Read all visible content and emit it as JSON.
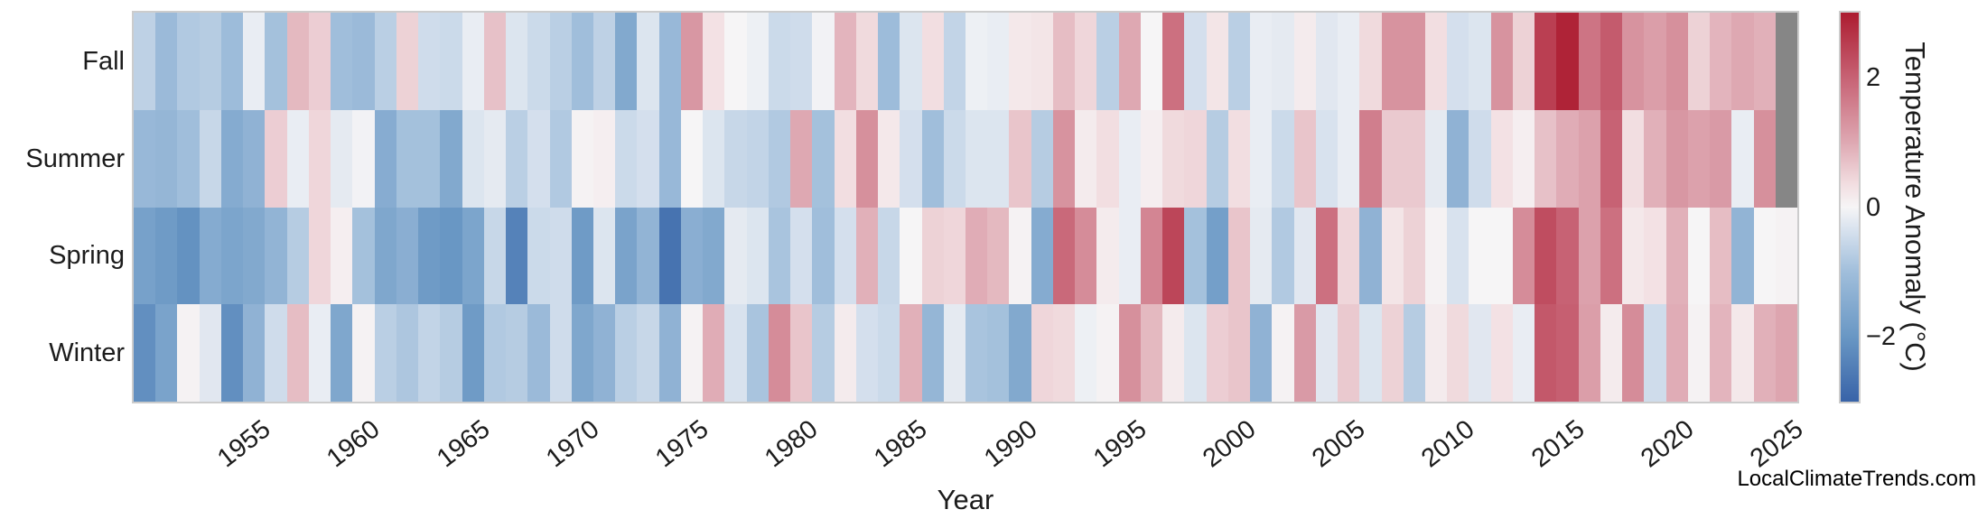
{
  "watermark": "LocalClimateTrends.com",
  "chart_data": {
    "type": "heatmap",
    "xlabel": "Year",
    "x": [
      1950,
      1951,
      1952,
      1953,
      1954,
      1955,
      1956,
      1957,
      1958,
      1959,
      1960,
      1961,
      1962,
      1963,
      1964,
      1965,
      1966,
      1967,
      1968,
      1969,
      1970,
      1971,
      1972,
      1973,
      1974,
      1975,
      1976,
      1977,
      1978,
      1979,
      1980,
      1981,
      1982,
      1983,
      1984,
      1985,
      1986,
      1987,
      1988,
      1989,
      1990,
      1991,
      1992,
      1993,
      1994,
      1995,
      1996,
      1997,
      1998,
      1999,
      2000,
      2001,
      2002,
      2003,
      2004,
      2005,
      2006,
      2007,
      2008,
      2009,
      2010,
      2011,
      2012,
      2013,
      2014,
      2015,
      2016,
      2017,
      2018,
      2019,
      2020,
      2021,
      2022,
      2023,
      2024,
      2025
    ],
    "x_tick_labels": [
      "1955",
      "1960",
      "1965",
      "1970",
      "1975",
      "1980",
      "1985",
      "1990",
      "1995",
      "2000",
      "2005",
      "2010",
      "2015",
      "2020",
      "2025"
    ],
    "categories": [
      "Fall",
      "Summer",
      "Spring",
      "Winter"
    ],
    "series": [
      {
        "name": "Fall",
        "values": [
          -0.65,
          -1.1,
          -0.8,
          -0.75,
          -1.05,
          -0.15,
          -0.95,
          0.8,
          0.55,
          -1.0,
          -1.1,
          -0.7,
          0.5,
          -0.45,
          -0.5,
          -0.15,
          0.7,
          -0.3,
          -0.5,
          -0.7,
          -1.0,
          -0.65,
          -1.55,
          -0.3,
          -1.15,
          1.25,
          0.3,
          0.0,
          -0.1,
          -0.5,
          -0.45,
          -0.05,
          0.85,
          0.4,
          -1.05,
          -0.3,
          0.35,
          -0.6,
          -0.1,
          -0.15,
          0.2,
          0.25,
          0.75,
          0.45,
          -0.7,
          1.0,
          0.0,
          1.8,
          -0.4,
          0.25,
          -0.7,
          -0.15,
          -0.2,
          0.15,
          -0.25,
          -0.15,
          0.4,
          1.3,
          1.3,
          0.35,
          -0.4,
          -0.3,
          1.3,
          0.5,
          2.5,
          2.9,
          1.75,
          2.1,
          1.3,
          1.15,
          1.35,
          0.5,
          0.85,
          1.0,
          0.9,
          null
        ]
      },
      {
        "name": "Summer",
        "values": [
          -1.15,
          -1.2,
          -1.0,
          -0.55,
          -1.5,
          -1.3,
          0.55,
          -0.15,
          0.45,
          -0.2,
          -0.05,
          -1.45,
          -0.95,
          -0.95,
          -1.55,
          -0.3,
          -0.2,
          -0.7,
          -0.4,
          -0.8,
          0.05,
          0.1,
          -0.5,
          -0.4,
          -1.15,
          0.0,
          -0.3,
          -0.55,
          -0.6,
          -0.8,
          1.0,
          -0.95,
          0.35,
          1.35,
          0.2,
          -0.4,
          -1.0,
          -0.5,
          -0.3,
          -0.3,
          0.65,
          -0.75,
          1.3,
          0.15,
          0.35,
          -0.15,
          0.1,
          0.4,
          0.45,
          -0.75,
          0.35,
          -0.15,
          -0.5,
          0.65,
          -0.35,
          -0.15,
          1.6,
          0.6,
          0.6,
          -0.2,
          -1.3,
          -0.45,
          0.3,
          0.1,
          0.7,
          0.95,
          1.1,
          2.0,
          0.35,
          0.9,
          1.25,
          1.1,
          1.2,
          -0.15,
          1.35,
          null
        ]
      },
      {
        "name": "Spring",
        "values": [
          -1.75,
          -1.9,
          -2.1,
          -1.5,
          -1.65,
          -1.55,
          -1.25,
          -0.75,
          0.45,
          0.1,
          -0.95,
          -1.6,
          -1.4,
          -1.9,
          -2.0,
          -1.65,
          -0.55,
          -2.4,
          -0.5,
          -0.45,
          -1.9,
          -0.3,
          -1.7,
          -1.25,
          -2.7,
          -1.4,
          -1.55,
          -0.2,
          -0.3,
          -0.9,
          -0.4,
          -1.0,
          -0.4,
          0.9,
          -0.55,
          0.0,
          0.5,
          0.45,
          0.95,
          0.8,
          0.05,
          -1.5,
          1.9,
          1.4,
          0.15,
          -0.15,
          1.5,
          2.4,
          -0.95,
          -1.8,
          0.65,
          -0.2,
          -0.8,
          -0.25,
          1.8,
          0.45,
          -1.3,
          0.25,
          0.5,
          0.05,
          -0.35,
          0.0,
          0.0,
          1.4,
          2.3,
          2.0,
          1.1,
          1.8,
          0.2,
          0.3,
          0.9,
          0.0,
          0.75,
          -1.25,
          0.0,
          0.05
        ]
      },
      {
        "name": "Winter",
        "values": [
          -2.15,
          -1.7,
          0.05,
          -0.25,
          -2.15,
          -1.3,
          -0.45,
          0.75,
          -0.15,
          -1.6,
          0.05,
          -0.7,
          -0.85,
          -0.6,
          -0.75,
          -1.9,
          -0.8,
          -0.75,
          -1.1,
          -0.45,
          -1.6,
          -1.3,
          -0.7,
          -0.55,
          -1.3,
          0.05,
          0.95,
          -0.35,
          -0.9,
          1.4,
          0.65,
          -0.75,
          0.15,
          -0.4,
          -0.5,
          0.9,
          -1.2,
          -0.2,
          -0.9,
          -0.95,
          -1.55,
          0.45,
          0.4,
          -0.1,
          0.05,
          1.35,
          0.8,
          0.15,
          -0.3,
          0.55,
          0.65,
          -1.3,
          0.05,
          1.2,
          -0.25,
          0.6,
          -0.3,
          0.5,
          -0.75,
          0.15,
          0.4,
          -0.25,
          0.3,
          -0.15,
          2.15,
          2.05,
          1.15,
          0.15,
          1.4,
          -0.45,
          0.95,
          0.05,
          0.85,
          0.2,
          0.9,
          1.05
        ]
      }
    ],
    "colorbar": {
      "label": "Temperature Anomaly (°C)",
      "tick_labels": [
        "2",
        "0",
        "−2"
      ],
      "tick_values": [
        2,
        0,
        -2
      ],
      "vmin": -3,
      "vmax": 3
    },
    "missing_value_color": "#868686",
    "colormap_stops": [
      [
        -3,
        "#3863a8"
      ],
      [
        -2,
        "#6997c4"
      ],
      [
        -1,
        "#a0bedb"
      ],
      [
        -0.35,
        "#d8e2ee"
      ],
      [
        0,
        "#f6f5f6"
      ],
      [
        0.35,
        "#f2dee1"
      ],
      [
        1,
        "#dea8b2"
      ],
      [
        2,
        "#c76274"
      ],
      [
        3,
        "#ac1c30"
      ]
    ],
    "grid": false,
    "legend": "colorbar-right"
  }
}
